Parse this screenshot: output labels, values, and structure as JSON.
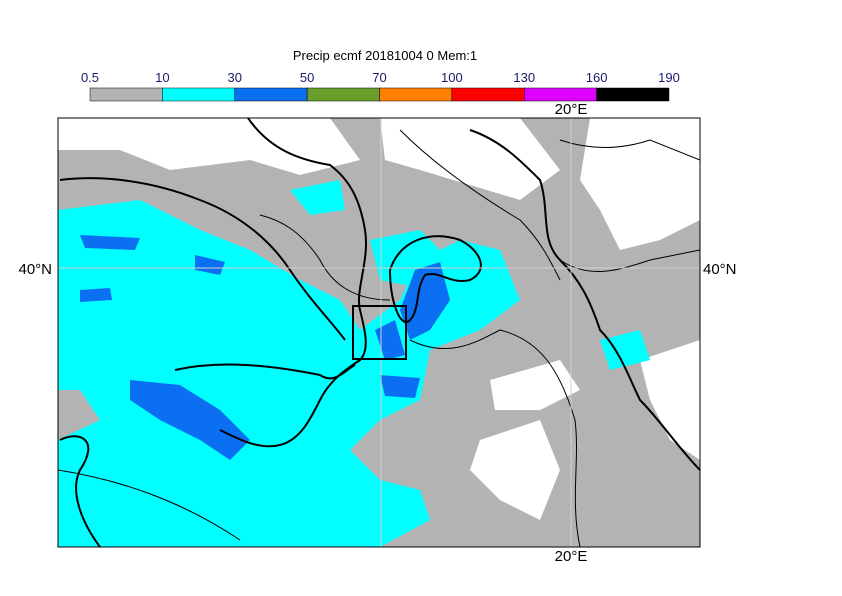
{
  "title": "Precip ecmf 20181004 0 Mem:1",
  "colorbar": {
    "bounds": [
      0.5,
      10,
      30,
      50,
      70,
      100,
      130,
      160,
      190
    ],
    "colors": [
      "#b3b3b3",
      "#00ffff",
      "#0a6ff0",
      "#6a9e2a",
      "#ff8000",
      "#ff0000",
      "#dd00ff",
      "#000000"
    ]
  },
  "grid_labels": {
    "lon": "20°E",
    "lat": "40°N"
  }
}
